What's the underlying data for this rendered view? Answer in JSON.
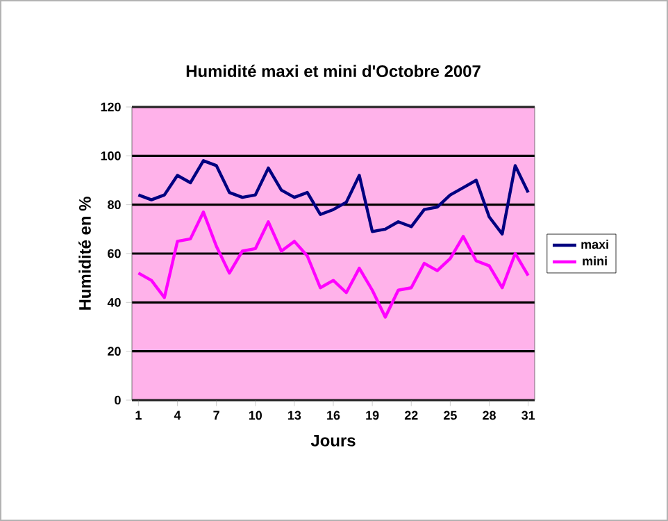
{
  "chart_data": {
    "type": "line",
    "title": "Humidité maxi et mini d'Octobre 2007",
    "xlabel": "Jours",
    "ylabel": "Humidité en %",
    "categories": [
      "1",
      null,
      null,
      "4",
      null,
      null,
      "7",
      null,
      null,
      "10",
      null,
      null,
      "13",
      null,
      null,
      "16",
      null,
      null,
      "19",
      null,
      null,
      "22",
      null,
      null,
      "25",
      null,
      null,
      "28",
      null,
      null,
      "31"
    ],
    "series": [
      {
        "name": "maxi",
        "color": "#000080",
        "values": [
          84,
          82,
          84,
          92,
          89,
          98,
          96,
          85,
          83,
          84,
          95,
          86,
          83,
          85,
          76,
          78,
          81,
          92,
          69,
          70,
          73,
          71,
          78,
          79,
          84,
          87,
          90,
          75,
          68,
          96,
          85
        ]
      },
      {
        "name": "mini",
        "color": "#ff00ff",
        "values": [
          52,
          49,
          42,
          65,
          66,
          77,
          63,
          52,
          61,
          62,
          73,
          61,
          65,
          59,
          46,
          49,
          44,
          54,
          45,
          34,
          45,
          46,
          56,
          53,
          58,
          67,
          57,
          55,
          46,
          60,
          51
        ]
      }
    ],
    "ylim": [
      0,
      120
    ],
    "yticks": [
      0,
      20,
      40,
      60,
      80,
      100,
      120
    ],
    "grid": "y",
    "legend": "right",
    "marker": "none",
    "line_style": "solid"
  }
}
